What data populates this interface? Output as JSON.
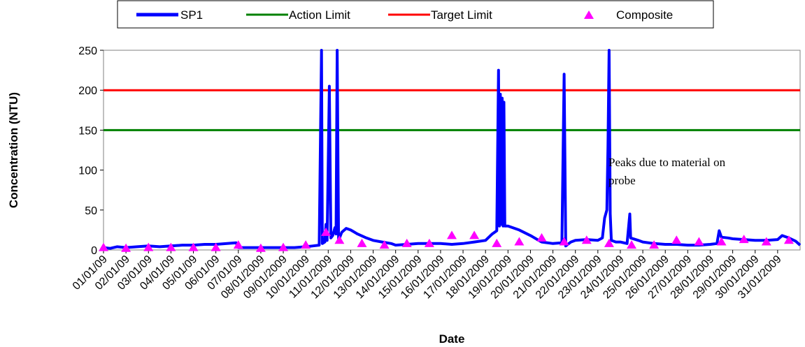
{
  "chart_data": {
    "type": "line",
    "xlabel": "Date",
    "ylabel": "Concentration (NTU)",
    "ylim": [
      0,
      250
    ],
    "yticks": [
      0,
      50,
      100,
      150,
      200,
      250
    ],
    "xlim": [
      0,
      31
    ],
    "xtick_labels": [
      "01/01/09",
      "02/01/09",
      "03/01/09",
      "04/01/09",
      "05/01/09",
      "06/01/09",
      "07/01/09",
      "08/01/2009",
      "09/01/2009",
      "10/01/2009",
      "11/01/2009",
      "12/01/2009",
      "13/01/2009",
      "14/01/2009",
      "15/01/2009",
      "16/01/2009",
      "17/01/2009",
      "18/01/2009",
      "19/01/2009",
      "20/01/2009",
      "21/01/2009",
      "22/01/2009",
      "23/01/2009",
      "24/01/2009",
      "25/01/2009",
      "26/01/2009",
      "27/01/2009",
      "28/01/2009",
      "29/01/2009",
      "30/01/2009",
      "31/01/2009"
    ],
    "grid": false,
    "legend_position": "top",
    "legend": [
      "SP1",
      "Action Limit",
      "Target Limit",
      "Composite"
    ],
    "annotation": [
      "Peaks due to material on",
      "probe"
    ],
    "series": [
      {
        "name": "SP1",
        "kind": "line",
        "color": "#0000ff",
        "points": [
          [
            0,
            3
          ],
          [
            0.3,
            2
          ],
          [
            0.6,
            4
          ],
          [
            1,
            3
          ],
          [
            1.5,
            4
          ],
          [
            2,
            5
          ],
          [
            2.5,
            4
          ],
          [
            3,
            5
          ],
          [
            3.5,
            6
          ],
          [
            4,
            6
          ],
          [
            4.5,
            7
          ],
          [
            5,
            7
          ],
          [
            5.5,
            8
          ],
          [
            5.9,
            9
          ],
          [
            6,
            3
          ],
          [
            6.5,
            3
          ],
          [
            7,
            3
          ],
          [
            7.5,
            3
          ],
          [
            8,
            3
          ],
          [
            8.5,
            3
          ],
          [
            9,
            4
          ],
          [
            9.3,
            5
          ],
          [
            9.6,
            6
          ],
          [
            9.7,
            250
          ],
          [
            9.74,
            8
          ],
          [
            9.85,
            10
          ],
          [
            9.9,
            32
          ],
          [
            9.95,
            12
          ],
          [
            10.05,
            205
          ],
          [
            10.12,
            15
          ],
          [
            10.2,
            18
          ],
          [
            10.3,
            28
          ],
          [
            10.35,
            20
          ],
          [
            10.4,
            250
          ],
          [
            10.46,
            12
          ],
          [
            10.6,
            22
          ],
          [
            10.8,
            27
          ],
          [
            11,
            25
          ],
          [
            11.3,
            20
          ],
          [
            11.7,
            15
          ],
          [
            12,
            12
          ],
          [
            12.4,
            10
          ],
          [
            12.8,
            8
          ],
          [
            13,
            6
          ],
          [
            13.5,
            7
          ],
          [
            14,
            8
          ],
          [
            14.5,
            8
          ],
          [
            15,
            8
          ],
          [
            15.5,
            7
          ],
          [
            16,
            8
          ],
          [
            16.5,
            10
          ],
          [
            17,
            12
          ],
          [
            17.3,
            20
          ],
          [
            17.5,
            24
          ],
          [
            17.58,
            225
          ],
          [
            17.62,
            30
          ],
          [
            17.66,
            195
          ],
          [
            17.7,
            32
          ],
          [
            17.74,
            190
          ],
          [
            17.78,
            30
          ],
          [
            17.82,
            185
          ],
          [
            17.86,
            30
          ],
          [
            18,
            30
          ],
          [
            18.5,
            25
          ],
          [
            19,
            18
          ],
          [
            19.5,
            10
          ],
          [
            20,
            8
          ],
          [
            20.4,
            9
          ],
          [
            20.5,
            220
          ],
          [
            20.57,
            5
          ],
          [
            20.8,
            10
          ],
          [
            21,
            12
          ],
          [
            21.5,
            13
          ],
          [
            22,
            12
          ],
          [
            22.2,
            15
          ],
          [
            22.3,
            40
          ],
          [
            22.4,
            50
          ],
          [
            22.45,
            130
          ],
          [
            22.5,
            250
          ],
          [
            22.55,
            45
          ],
          [
            22.6,
            12
          ],
          [
            22.8,
            10
          ],
          [
            23,
            10
          ],
          [
            23.3,
            8
          ],
          [
            23.42,
            45
          ],
          [
            23.46,
            15
          ],
          [
            23.8,
            12
          ],
          [
            24,
            10
          ],
          [
            24.5,
            8
          ],
          [
            25,
            7
          ],
          [
            25.5,
            7
          ],
          [
            26,
            6
          ],
          [
            26.5,
            6
          ],
          [
            27,
            7
          ],
          [
            27.3,
            8
          ],
          [
            27.4,
            24
          ],
          [
            27.5,
            16
          ],
          [
            27.8,
            15
          ],
          [
            28,
            14
          ],
          [
            28.5,
            13
          ],
          [
            29,
            12
          ],
          [
            29.5,
            12
          ],
          [
            30,
            13
          ],
          [
            30.2,
            18
          ],
          [
            30.5,
            15
          ],
          [
            30.8,
            11
          ],
          [
            31,
            6
          ]
        ]
      },
      {
        "name": "Action Limit",
        "kind": "hline",
        "color": "#008000",
        "value": 150
      },
      {
        "name": "Target Limit",
        "kind": "hline",
        "color": "#ff0000",
        "value": 200
      },
      {
        "name": "Composite",
        "kind": "scatter",
        "color": "#ff00ff",
        "x": [
          0,
          1,
          2,
          3,
          4,
          5,
          6,
          7,
          8,
          9,
          9.9,
          10.5,
          11.5,
          12.5,
          13.5,
          14.5,
          15.5,
          16.5,
          17.5,
          18.5,
          19.5,
          20.5,
          21.5,
          22.5,
          23.5,
          24.5,
          25.5,
          26.5,
          27.5,
          28.5,
          29.5,
          30.5
        ],
        "y": [
          3,
          2,
          3,
          3,
          3,
          3,
          6,
          2,
          3,
          6,
          22,
          12,
          8,
          6,
          8,
          8,
          18,
          18,
          8,
          10,
          15,
          10,
          12,
          8,
          6,
          6,
          12,
          10,
          10,
          13,
          10,
          12
        ]
      }
    ]
  }
}
